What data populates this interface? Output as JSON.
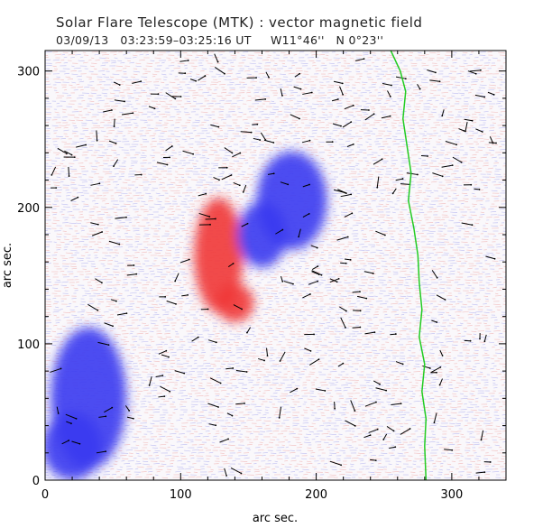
{
  "title": "Solar Flare Telescope (MTK) : vector magnetic field",
  "subtitle": "03/09/13   03:23:59–03:25:16 UT     W11°46''   N 0°23''",
  "colors": {
    "positive": "#f03a3a",
    "negative": "#3c3cf0",
    "limb": "#22cc22",
    "arrow": "#000000"
  },
  "chart_data": {
    "type": "vector-magnetogram",
    "xlabel": "arc sec.",
    "ylabel": "arc sec.",
    "xlim": [
      0,
      340
    ],
    "ylim": [
      0,
      315
    ],
    "xticks": [
      0,
      100,
      200,
      300
    ],
    "yticks": [
      0,
      100,
      200,
      300
    ],
    "limb_x": [
      255,
      262,
      266,
      264,
      267,
      270,
      268,
      272,
      275,
      276,
      278,
      276,
      280,
      278,
      281,
      280,
      281
    ],
    "limb_y": [
      315,
      300,
      285,
      265,
      245,
      225,
      205,
      185,
      165,
      145,
      125,
      105,
      85,
      65,
      45,
      25,
      0
    ],
    "blobs": [
      {
        "polarity": "positive",
        "x": 128,
        "y": 165,
        "rx": 18,
        "ry": 42
      },
      {
        "polarity": "positive",
        "x": 140,
        "y": 130,
        "rx": 14,
        "ry": 14
      },
      {
        "polarity": "negative",
        "x": 182,
        "y": 205,
        "rx": 26,
        "ry": 36
      },
      {
        "polarity": "negative",
        "x": 160,
        "y": 180,
        "rx": 18,
        "ry": 24
      },
      {
        "polarity": "negative",
        "x": 32,
        "y": 60,
        "rx": 28,
        "ry": 52
      },
      {
        "polarity": "negative",
        "x": 20,
        "y": 25,
        "rx": 22,
        "ry": 25
      }
    ]
  }
}
